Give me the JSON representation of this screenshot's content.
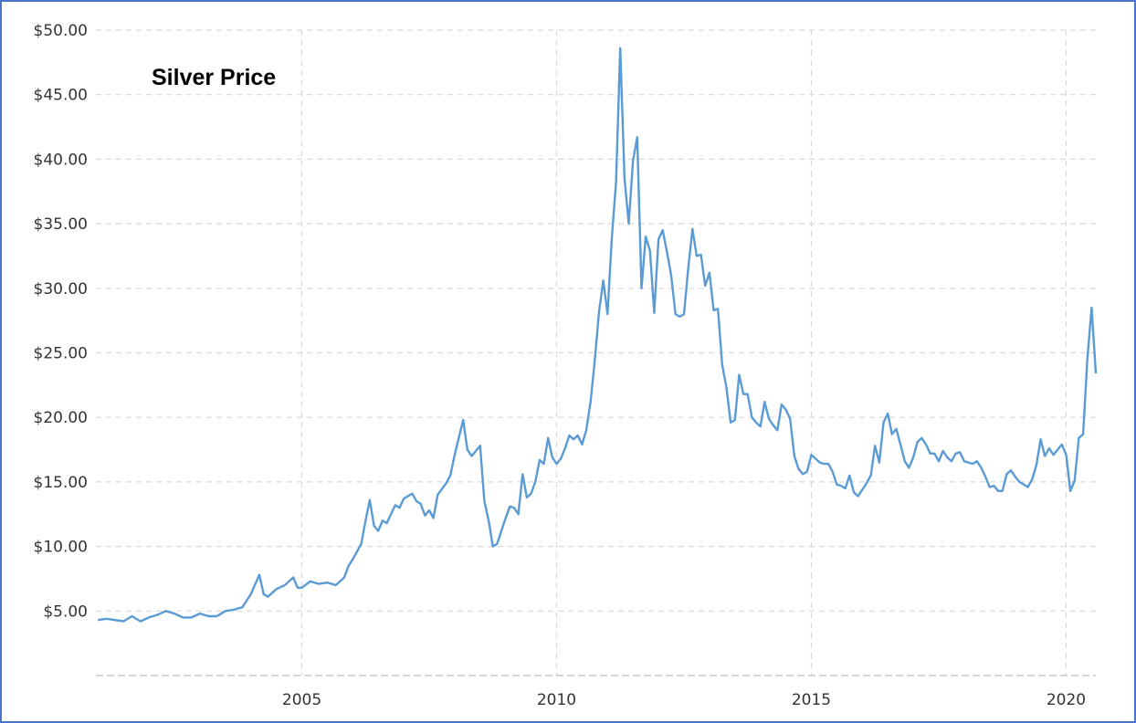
{
  "chart_data": {
    "type": "line",
    "title": "Silver Price",
    "xlabel": "",
    "ylabel": "",
    "ylim": [
      0,
      50
    ],
    "xlim": [
      "2001-01",
      "2020-08"
    ],
    "grid": true,
    "line_color": "#5b9bd5",
    "border_color": "#4a74c9",
    "y_ticks": [
      {
        "value": 5,
        "label": "$5.00"
      },
      {
        "value": 10,
        "label": "$10.00"
      },
      {
        "value": 15,
        "label": "$15.00"
      },
      {
        "value": 20,
        "label": "$20.00"
      },
      {
        "value": 25,
        "label": "$25.00"
      },
      {
        "value": 30,
        "label": "$30.00"
      },
      {
        "value": 35,
        "label": "$35.00"
      },
      {
        "value": 40,
        "label": "$40.00"
      },
      {
        "value": 45,
        "label": "$45.00"
      },
      {
        "value": 50,
        "label": "$50.00"
      }
    ],
    "x_ticks": [
      {
        "value": "2005-01",
        "label": "2005"
      },
      {
        "value": "2010-01",
        "label": "2010"
      },
      {
        "value": "2015-01",
        "label": "2015"
      },
      {
        "value": "2020-01",
        "label": "2020"
      }
    ],
    "series": [
      {
        "x": [
          "2001-01",
          "2001-03",
          "2001-05",
          "2001-07",
          "2001-09",
          "2001-11",
          "2002-01",
          "2002-03",
          "2002-05",
          "2002-07",
          "2002-09",
          "2002-11",
          "2003-01",
          "2003-03",
          "2003-05",
          "2003-07",
          "2003-09",
          "2003-11",
          "2003-12",
          "2004-01",
          "2004-03",
          "2004-04",
          "2004-05",
          "2004-07",
          "2004-09",
          "2004-11",
          "2004-12",
          "2005-01",
          "2005-03",
          "2005-05",
          "2005-07",
          "2005-09",
          "2005-11",
          "2005-12",
          "2006-01",
          "2006-03",
          "2006-04",
          "2006-05",
          "2006-06",
          "2006-07",
          "2006-08",
          "2006-09",
          "2006-11",
          "2006-12",
          "2007-01",
          "2007-03",
          "2007-04",
          "2007-05",
          "2007-06",
          "2007-07",
          "2007-08",
          "2007-09",
          "2007-11",
          "2007-12",
          "2008-01",
          "2008-03",
          "2008-04",
          "2008-05",
          "2008-06",
          "2008-07",
          "2008-08",
          "2008-09",
          "2008-10",
          "2008-11",
          "2008-12",
          "2009-01",
          "2009-02",
          "2009-03",
          "2009-04",
          "2009-05",
          "2009-06",
          "2009-07",
          "2009-08",
          "2009-09",
          "2009-10",
          "2009-11",
          "2009-12",
          "2010-01",
          "2010-02",
          "2010-03",
          "2010-04",
          "2010-05",
          "2010-06",
          "2010-07",
          "2010-08",
          "2010-09",
          "2010-10",
          "2010-11",
          "2010-12",
          "2011-01",
          "2011-02",
          "2011-03",
          "2011-04",
          "2011-05",
          "2011-06",
          "2011-07",
          "2011-08",
          "2011-09",
          "2011-10",
          "2011-11",
          "2011-12",
          "2012-01",
          "2012-02",
          "2012-03",
          "2012-04",
          "2012-05",
          "2012-06",
          "2012-07",
          "2012-08",
          "2012-09",
          "2012-10",
          "2012-11",
          "2012-12",
          "2013-01",
          "2013-02",
          "2013-03",
          "2013-04",
          "2013-05",
          "2013-06",
          "2013-07",
          "2013-08",
          "2013-09",
          "2013-10",
          "2013-11",
          "2013-12",
          "2014-01",
          "2014-02",
          "2014-03",
          "2014-04",
          "2014-05",
          "2014-06",
          "2014-07",
          "2014-08",
          "2014-09",
          "2014-10",
          "2014-11",
          "2014-12",
          "2015-01",
          "2015-02",
          "2015-03",
          "2015-04",
          "2015-05",
          "2015-06",
          "2015-07",
          "2015-08",
          "2015-09",
          "2015-10",
          "2015-11",
          "2015-12",
          "2016-01",
          "2016-02",
          "2016-03",
          "2016-04",
          "2016-05",
          "2016-06",
          "2016-07",
          "2016-08",
          "2016-09",
          "2016-10",
          "2016-11",
          "2016-12",
          "2017-01",
          "2017-02",
          "2017-03",
          "2017-04",
          "2017-05",
          "2017-06",
          "2017-07",
          "2017-08",
          "2017-09",
          "2017-10",
          "2017-11",
          "2017-12",
          "2018-01",
          "2018-02",
          "2018-03",
          "2018-04",
          "2018-05",
          "2018-06",
          "2018-07",
          "2018-08",
          "2018-09",
          "2018-10",
          "2018-11",
          "2018-12",
          "2019-01",
          "2019-02",
          "2019-03",
          "2019-04",
          "2019-05",
          "2019-06",
          "2019-07",
          "2019-08",
          "2019-09",
          "2019-10",
          "2019-11",
          "2019-12",
          "2020-01",
          "2020-02",
          "2020-03",
          "2020-04",
          "2020-05",
          "2020-06",
          "2020-07",
          "2020-08"
        ],
        "values": [
          4.3,
          4.4,
          4.3,
          4.2,
          4.6,
          4.2,
          4.5,
          4.7,
          5.0,
          4.8,
          4.5,
          4.5,
          4.8,
          4.6,
          4.6,
          5.0,
          5.1,
          5.3,
          5.8,
          6.3,
          7.8,
          6.3,
          6.1,
          6.7,
          7.0,
          7.6,
          6.8,
          6.8,
          7.3,
          7.1,
          7.2,
          7.0,
          7.6,
          8.5,
          9.0,
          10.2,
          12.0,
          13.6,
          11.6,
          11.2,
          12.0,
          11.8,
          13.2,
          13.0,
          13.7,
          14.1,
          13.5,
          13.3,
          12.4,
          12.8,
          12.2,
          14.0,
          14.9,
          15.5,
          17.1,
          19.8,
          17.5,
          17.0,
          17.4,
          17.8,
          13.5,
          12.0,
          10.0,
          10.2,
          11.2,
          12.2,
          13.1,
          13.0,
          12.5,
          15.6,
          13.8,
          14.1,
          15.0,
          16.7,
          16.4,
          18.4,
          16.9,
          16.4,
          16.8,
          17.6,
          18.6,
          18.3,
          18.6,
          17.9,
          19.0,
          21.2,
          24.4,
          28.2,
          30.6,
          28.0,
          33.8,
          38.2,
          48.6,
          38.5,
          35.0,
          39.9,
          41.7,
          30.0,
          34.0,
          32.9,
          28.1,
          33.8,
          34.5,
          32.8,
          31.0,
          28.0,
          27.8,
          28.0,
          31.5,
          34.6,
          32.5,
          32.6,
          30.2,
          31.2,
          28.3,
          28.4,
          24.1,
          22.3,
          19.6,
          19.8,
          23.3,
          21.8,
          21.8,
          20.0,
          19.6,
          19.3,
          21.2,
          19.9,
          19.4,
          19.0,
          21.0,
          20.6,
          19.9,
          17.0,
          16.0,
          15.6,
          15.8,
          17.1,
          16.8,
          16.5,
          16.4,
          16.4,
          15.8,
          14.8,
          14.7,
          14.5,
          15.5,
          14.2,
          13.9,
          14.4,
          14.9,
          15.5,
          17.8,
          16.5,
          19.6,
          20.3,
          18.7,
          19.1,
          17.9,
          16.6,
          16.1,
          16.9,
          18.1,
          18.4,
          17.9,
          17.2,
          17.2,
          16.6,
          17.4,
          16.9,
          16.6,
          17.2,
          17.3,
          16.6,
          16.5,
          16.4,
          16.6,
          16.1,
          15.4,
          14.6,
          14.7,
          14.3,
          14.3,
          15.6,
          15.9,
          15.4,
          15.0,
          14.8,
          14.6,
          15.2,
          16.3,
          18.3,
          17.0,
          17.6,
          17.1,
          17.5,
          17.9,
          17.1,
          14.3,
          15.1,
          18.4,
          18.7,
          24.5,
          28.5,
          23.4
        ]
      }
    ]
  }
}
